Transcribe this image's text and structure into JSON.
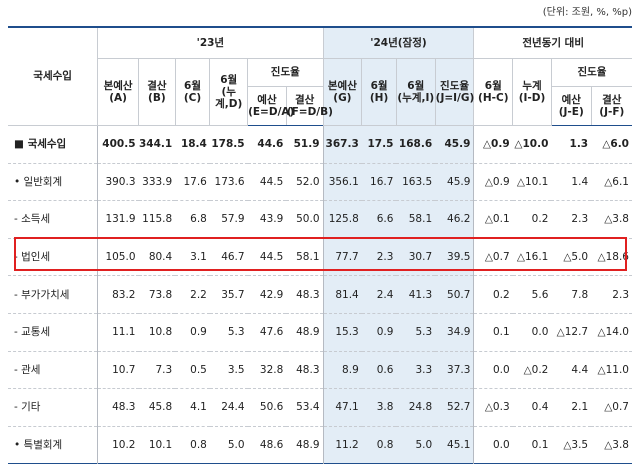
{
  "unit_note": "(단위: 조원, %, %p)",
  "header": {
    "row_label": "국세수입",
    "groups": {
      "y23": "'23년",
      "y24": "'24년(잠정)",
      "yoy": "전년동기 대비"
    },
    "progress": "진도율",
    "cols": [
      [
        "본예산",
        "(A)"
      ],
      [
        "결산",
        "(B)"
      ],
      [
        "6월",
        "(C)"
      ],
      [
        "6월",
        "(누계,D)"
      ],
      [
        "예산",
        "(E=D/A)"
      ],
      [
        "결산",
        "(F=D/B)"
      ],
      [
        "본예산",
        "(G)"
      ],
      [
        "6월",
        "(H)"
      ],
      [
        "6월",
        "(누계,I)"
      ],
      [
        "진도율",
        "(J=I/G)"
      ],
      [
        "6월",
        "(H-C)"
      ],
      [
        "누계",
        "(I-D)"
      ],
      [
        "예산",
        "(J-E)"
      ],
      [
        "결산",
        "(J-F)"
      ]
    ]
  },
  "rows": [
    {
      "label": "■ 국세수입",
      "v": [
        "400.5",
        "344.1",
        "18.4",
        "178.5",
        "44.6",
        "51.9",
        "367.3",
        "17.5",
        "168.6",
        "45.9",
        "△0.9",
        "△10.0",
        "1.3",
        "△6.0"
      ]
    },
    {
      "label": "• 일반회계",
      "v": [
        "390.3",
        "333.9",
        "17.6",
        "173.6",
        "44.5",
        "52.0",
        "356.1",
        "16.7",
        "163.5",
        "45.9",
        "△0.9",
        "△10.1",
        "1.4",
        "△6.1"
      ]
    },
    {
      "label": "- 소득세",
      "v": [
        "131.9",
        "115.8",
        "6.8",
        "57.9",
        "43.9",
        "50.0",
        "125.8",
        "6.6",
        "58.1",
        "46.2",
        "△0.1",
        "0.2",
        "2.3",
        "△3.8"
      ]
    },
    {
      "label": "- 법인세",
      "v": [
        "105.0",
        "80.4",
        "3.1",
        "46.7",
        "44.5",
        "58.1",
        "77.7",
        "2.3",
        "30.7",
        "39.5",
        "△0.7",
        "△16.1",
        "△5.0",
        "△18.6"
      ]
    },
    {
      "label": "- 부가가치세",
      "v": [
        "83.2",
        "73.8",
        "2.2",
        "35.7",
        "42.9",
        "48.3",
        "81.4",
        "2.4",
        "41.3",
        "50.7",
        "0.2",
        "5.6",
        "7.8",
        "2.3"
      ]
    },
    {
      "label": "- 교통세",
      "v": [
        "11.1",
        "10.8",
        "0.9",
        "5.3",
        "47.6",
        "48.9",
        "15.3",
        "0.9",
        "5.3",
        "34.9",
        "0.1",
        "0.0",
        "△12.7",
        "△14.0"
      ]
    },
    {
      "label": "- 관세",
      "v": [
        "10.7",
        "7.3",
        "0.5",
        "3.5",
        "32.8",
        "48.3",
        "8.9",
        "0.6",
        "3.3",
        "37.3",
        "0.0",
        "△0.2",
        "4.4",
        "△11.0"
      ]
    },
    {
      "label": "- 기타",
      "v": [
        "48.3",
        "45.8",
        "4.1",
        "24.4",
        "50.6",
        "53.4",
        "47.1",
        "3.8",
        "24.8",
        "52.7",
        "△0.3",
        "0.4",
        "2.1",
        "△0.7"
      ]
    },
    {
      "label": "• 특별회계",
      "v": [
        "10.2",
        "10.1",
        "0.8",
        "5.0",
        "48.6",
        "48.9",
        "11.2",
        "0.8",
        "5.0",
        "45.1",
        "0.0",
        "0.1",
        "△3.5",
        "△3.8"
      ]
    }
  ]
}
